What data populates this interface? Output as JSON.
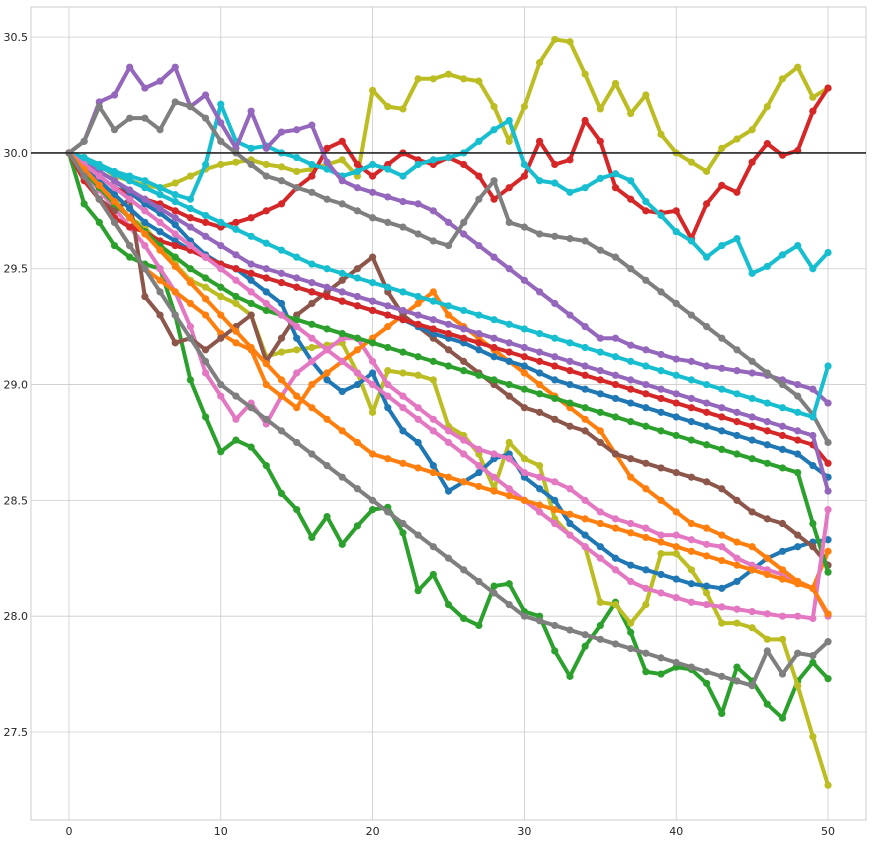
{
  "chart_data": {
    "type": "line",
    "title": "",
    "xlabel": "",
    "ylabel": "",
    "xlim": [
      -2.5,
      52.5
    ],
    "ylim": [
      27.12,
      30.63
    ],
    "x_ticks": [
      0,
      10,
      20,
      30,
      40,
      50
    ],
    "y_ticks": [
      27.5,
      28.0,
      28.5,
      29.0,
      29.5,
      30.0,
      30.5
    ],
    "x_tick_labels": [
      "0",
      "10",
      "20",
      "30",
      "40",
      "50"
    ],
    "y_tick_labels": [
      "27.5",
      "28.0",
      "28.5",
      "29.0",
      "29.5",
      "30.0",
      "30.5"
    ],
    "grid": true,
    "legend": "none",
    "reference_line": {
      "y": 30.0,
      "color": "#262626"
    },
    "marker": "circle",
    "series": [
      {
        "color": "#bcbd22",
        "values": [
          30.0,
          29.98,
          29.95,
          29.9,
          29.88,
          29.86,
          29.85,
          29.87,
          29.9,
          29.93,
          29.95,
          29.96,
          29.97,
          29.95,
          29.94,
          29.92,
          29.93,
          29.95,
          29.97,
          29.9,
          30.27,
          30.2,
          30.19,
          30.32,
          30.32,
          30.34,
          30.32,
          30.31,
          30.2,
          30.05,
          30.2,
          30.39,
          30.49,
          30.48,
          30.34,
          30.19,
          30.3,
          30.17,
          30.25,
          30.08,
          30.0,
          29.96,
          29.92,
          30.02,
          30.06,
          30.1,
          30.2,
          30.32,
          30.37,
          30.24,
          30.28
        ]
      },
      {
        "color": "#d62728",
        "values": [
          30.0,
          29.95,
          29.9,
          29.85,
          29.82,
          29.8,
          29.78,
          29.75,
          29.72,
          29.7,
          29.68,
          29.7,
          29.72,
          29.75,
          29.78,
          29.85,
          29.9,
          30.02,
          30.05,
          29.95,
          29.9,
          29.95,
          30.0,
          29.97,
          29.95,
          29.98,
          29.95,
          29.9,
          29.8,
          29.85,
          29.9,
          30.05,
          29.95,
          29.97,
          30.14,
          30.05,
          29.85,
          29.8,
          29.75,
          29.74,
          29.75,
          29.63,
          29.78,
          29.86,
          29.83,
          29.96,
          30.04,
          29.99,
          30.01,
          30.18,
          30.28
        ]
      },
      {
        "color": "#17becf",
        "values": [
          30.0,
          29.98,
          29.95,
          29.92,
          29.9,
          29.88,
          29.85,
          29.82,
          29.8,
          29.95,
          30.21,
          30.05,
          30.02,
          30.03,
          30.0,
          29.98,
          29.95,
          29.93,
          29.9,
          29.92,
          29.95,
          29.93,
          29.9,
          29.95,
          29.97,
          29.98,
          30.0,
          30.05,
          30.1,
          30.14,
          29.95,
          29.88,
          29.87,
          29.83,
          29.85,
          29.89,
          29.91,
          29.88,
          29.79,
          29.73,
          29.66,
          29.62,
          29.55,
          29.6,
          29.63,
          29.48,
          29.51,
          29.56,
          29.6,
          29.5,
          29.57
        ]
      },
      {
        "color": "#9467bd",
        "values": [
          30.0,
          30.05,
          30.22,
          30.25,
          30.37,
          30.28,
          30.31,
          30.37,
          30.2,
          30.25,
          30.13,
          30.02,
          30.18,
          30.02,
          30.09,
          30.1,
          30.12,
          29.96,
          29.88,
          29.85,
          29.83,
          29.81,
          29.79,
          29.78,
          29.75,
          29.7,
          29.65,
          29.6,
          29.55,
          29.5,
          29.45,
          29.4,
          29.35,
          29.3,
          29.25,
          29.2,
          29.2,
          29.17,
          29.15,
          29.13,
          29.11,
          29.1,
          29.08,
          29.07,
          29.06,
          29.05,
          29.04,
          29.02,
          29.0,
          28.98,
          28.92
        ]
      },
      {
        "color": "#7f7f7f",
        "values": [
          30.0,
          30.05,
          30.2,
          30.1,
          30.15,
          30.15,
          30.1,
          30.22,
          30.2,
          30.15,
          30.05,
          30.0,
          29.95,
          29.9,
          29.88,
          29.85,
          29.83,
          29.8,
          29.78,
          29.75,
          29.72,
          29.7,
          29.68,
          29.65,
          29.62,
          29.6,
          29.7,
          29.8,
          29.88,
          29.7,
          29.68,
          29.65,
          29.64,
          29.63,
          29.62,
          29.58,
          29.55,
          29.5,
          29.45,
          29.4,
          29.35,
          29.3,
          29.25,
          29.2,
          29.15,
          29.1,
          29.05,
          29.0,
          28.95,
          28.87,
          28.75
        ]
      },
      {
        "color": "#2ca02c",
        "values": [
          30.0,
          29.78,
          29.7,
          29.6,
          29.55,
          29.52,
          29.5,
          29.3,
          29.02,
          28.86,
          28.71,
          28.76,
          28.73,
          28.65,
          28.53,
          28.46,
          28.34,
          28.43,
          28.31,
          28.39,
          28.46,
          28.47,
          28.36,
          28.11,
          28.18,
          28.05,
          27.99,
          27.96,
          28.13,
          28.14,
          28.02,
          28.0,
          27.85,
          27.74,
          27.87,
          27.96,
          28.06,
          27.93,
          27.76,
          27.75,
          27.78,
          27.77,
          27.71,
          27.58,
          27.78,
          27.72,
          27.62,
          27.56,
          27.72,
          27.8,
          27.73
        ]
      },
      {
        "color": "#bcbd22",
        "values": [
          30.0,
          29.95,
          29.88,
          29.8,
          29.72,
          29.68,
          29.6,
          29.52,
          29.45,
          29.42,
          29.38,
          29.35,
          29.3,
          29.12,
          29.14,
          29.15,
          29.16,
          29.17,
          29.18,
          29.05,
          28.88,
          29.06,
          29.05,
          29.04,
          29.02,
          28.82,
          28.78,
          28.7,
          28.55,
          28.75,
          28.68,
          28.65,
          28.42,
          28.35,
          28.3,
          28.06,
          28.05,
          27.97,
          28.05,
          28.27,
          28.27,
          28.2,
          28.1,
          27.97,
          27.97,
          27.95,
          27.9,
          27.9,
          27.7,
          27.48,
          27.27
        ]
      },
      {
        "color": "#1f77b4",
        "values": [
          30.0,
          29.96,
          29.92,
          29.88,
          29.83,
          29.78,
          29.74,
          29.69,
          29.62,
          29.56,
          29.52,
          29.5,
          29.45,
          29.4,
          29.35,
          29.2,
          29.1,
          29.02,
          28.97,
          29.0,
          29.05,
          28.9,
          28.8,
          28.75,
          28.65,
          28.54,
          28.58,
          28.62,
          28.68,
          28.7,
          28.6,
          28.55,
          28.5,
          28.4,
          28.35,
          28.3,
          28.25,
          28.22,
          28.2,
          28.18,
          28.16,
          28.14,
          28.13,
          28.12,
          28.15,
          28.2,
          28.25,
          28.28,
          28.3,
          28.32,
          28.33
        ]
      },
      {
        "color": "#e377c2",
        "values": [
          30.0,
          29.92,
          29.84,
          29.76,
          29.68,
          29.6,
          29.5,
          29.4,
          29.25,
          29.05,
          28.95,
          28.85,
          28.92,
          28.83,
          28.95,
          29.05,
          29.1,
          29.15,
          29.2,
          29.2,
          29.1,
          29.0,
          28.95,
          28.9,
          28.85,
          28.8,
          28.76,
          28.72,
          28.7,
          28.68,
          28.62,
          28.6,
          28.58,
          28.55,
          28.5,
          28.45,
          28.42,
          28.4,
          28.38,
          28.35,
          28.35,
          28.33,
          28.31,
          28.3,
          28.25,
          28.22,
          28.2,
          28.18,
          28.15,
          28.12,
          28.0
        ]
      },
      {
        "color": "#ff7f0e",
        "values": [
          30.0,
          29.9,
          29.8,
          29.7,
          29.6,
          29.5,
          29.45,
          29.4,
          29.35,
          29.3,
          29.22,
          29.18,
          29.15,
          29.0,
          28.95,
          28.9,
          29.0,
          29.05,
          29.1,
          29.15,
          29.2,
          29.25,
          29.3,
          29.35,
          29.4,
          29.3,
          29.25,
          29.2,
          29.15,
          29.1,
          29.05,
          29.0,
          28.95,
          28.9,
          28.85,
          28.8,
          28.7,
          28.6,
          28.55,
          28.5,
          28.45,
          28.4,
          28.38,
          28.35,
          28.32,
          28.3,
          28.25,
          28.2,
          28.15,
          28.12,
          28.28
        ]
      },
      {
        "color": "#8c564b",
        "values": [
          30.0,
          29.9,
          29.8,
          29.75,
          29.8,
          29.38,
          29.3,
          29.18,
          29.2,
          29.15,
          29.2,
          29.25,
          29.3,
          29.1,
          29.2,
          29.3,
          29.35,
          29.4,
          29.45,
          29.5,
          29.55,
          29.4,
          29.3,
          29.25,
          29.2,
          29.15,
          29.1,
          29.05,
          29.0,
          28.95,
          28.9,
          28.88,
          28.85,
          28.82,
          28.8,
          28.75,
          28.7,
          28.68,
          28.66,
          28.64,
          28.62,
          28.6,
          28.58,
          28.55,
          28.5,
          28.45,
          28.42,
          28.4,
          28.35,
          28.3,
          28.22
        ]
      },
      {
        "color": "#1f77b4",
        "values": [
          30.0,
          29.94,
          29.88,
          29.82,
          29.76,
          29.7,
          29.66,
          29.62,
          29.58,
          29.55,
          29.52,
          29.5,
          29.48,
          29.46,
          29.44,
          29.42,
          29.4,
          29.38,
          29.36,
          29.34,
          29.32,
          29.3,
          29.28,
          29.25,
          29.22,
          29.2,
          29.18,
          29.15,
          29.12,
          29.1,
          29.08,
          29.05,
          29.02,
          29.0,
          28.98,
          28.96,
          28.94,
          28.92,
          28.9,
          28.88,
          28.86,
          28.84,
          28.82,
          28.8,
          28.78,
          28.76,
          28.74,
          28.72,
          28.7,
          28.65,
          28.6
        ]
      },
      {
        "color": "#d62728",
        "values": [
          30.0,
          29.88,
          29.8,
          29.72,
          29.68,
          29.66,
          29.62,
          29.6,
          29.58,
          29.55,
          29.52,
          29.5,
          29.48,
          29.46,
          29.44,
          29.42,
          29.4,
          29.38,
          29.36,
          29.34,
          29.32,
          29.3,
          29.28,
          29.26,
          29.24,
          29.22,
          29.2,
          29.18,
          29.16,
          29.14,
          29.12,
          29.1,
          29.08,
          29.06,
          29.04,
          29.02,
          29.0,
          28.98,
          28.96,
          28.94,
          28.92,
          28.9,
          28.88,
          28.86,
          28.84,
          28.82,
          28.8,
          28.78,
          28.76,
          28.74,
          28.66
        ]
      },
      {
        "color": "#9467bd",
        "values": [
          30.0,
          29.96,
          29.92,
          29.88,
          29.84,
          29.8,
          29.76,
          29.72,
          29.68,
          29.64,
          29.6,
          29.56,
          29.52,
          29.5,
          29.48,
          29.46,
          29.44,
          29.42,
          29.4,
          29.38,
          29.36,
          29.34,
          29.32,
          29.3,
          29.28,
          29.26,
          29.24,
          29.22,
          29.2,
          29.18,
          29.16,
          29.14,
          29.12,
          29.1,
          29.08,
          29.06,
          29.04,
          29.02,
          29.0,
          28.98,
          28.96,
          28.94,
          28.92,
          28.9,
          28.88,
          28.86,
          28.84,
          28.82,
          28.8,
          28.78,
          28.54
        ]
      },
      {
        "color": "#17becf",
        "values": [
          30.0,
          29.97,
          29.94,
          29.91,
          29.88,
          29.85,
          29.82,
          29.79,
          29.76,
          29.73,
          29.7,
          29.67,
          29.64,
          29.61,
          29.58,
          29.55,
          29.52,
          29.5,
          29.48,
          29.46,
          29.44,
          29.42,
          29.4,
          29.38,
          29.36,
          29.34,
          29.32,
          29.3,
          29.28,
          29.26,
          29.24,
          29.22,
          29.2,
          29.18,
          29.16,
          29.14,
          29.12,
          29.1,
          29.08,
          29.06,
          29.04,
          29.02,
          29.0,
          28.98,
          28.96,
          28.94,
          28.92,
          28.9,
          28.88,
          28.86,
          29.08
        ]
      },
      {
        "color": "#2ca02c",
        "values": [
          30.0,
          29.92,
          29.85,
          29.78,
          29.72,
          29.66,
          29.6,
          29.55,
          29.5,
          29.46,
          29.42,
          29.38,
          29.35,
          29.32,
          29.3,
          29.28,
          29.26,
          29.24,
          29.22,
          29.2,
          29.18,
          29.16,
          29.14,
          29.12,
          29.1,
          29.08,
          29.06,
          29.04,
          29.02,
          29.0,
          28.98,
          28.96,
          28.94,
          28.92,
          28.9,
          28.88,
          28.86,
          28.84,
          28.82,
          28.8,
          28.78,
          28.76,
          28.74,
          28.72,
          28.7,
          28.68,
          28.66,
          28.64,
          28.62,
          28.4,
          28.19
        ]
      },
      {
        "color": "#e377c2",
        "values": [
          30.0,
          29.95,
          29.9,
          29.85,
          29.8,
          29.75,
          29.7,
          29.65,
          29.6,
          29.55,
          29.5,
          29.45,
          29.4,
          29.35,
          29.3,
          29.25,
          29.2,
          29.15,
          29.1,
          29.05,
          29.0,
          28.95,
          28.9,
          28.85,
          28.8,
          28.75,
          28.7,
          28.65,
          28.6,
          28.55,
          28.5,
          28.45,
          28.4,
          28.35,
          28.3,
          28.25,
          28.2,
          28.15,
          28.12,
          28.1,
          28.08,
          28.06,
          28.05,
          28.04,
          28.03,
          28.02,
          28.01,
          28.0,
          28.0,
          27.99,
          28.46
        ]
      },
      {
        "color": "#ff7f0e",
        "values": [
          30.0,
          29.93,
          29.86,
          29.79,
          29.72,
          29.65,
          29.58,
          29.51,
          29.44,
          29.37,
          29.3,
          29.23,
          29.16,
          29.09,
          29.02,
          28.95,
          28.9,
          28.85,
          28.8,
          28.75,
          28.7,
          28.68,
          28.66,
          28.64,
          28.62,
          28.6,
          28.58,
          28.56,
          28.54,
          28.52,
          28.5,
          28.48,
          28.46,
          28.44,
          28.42,
          28.4,
          28.38,
          28.36,
          28.34,
          28.32,
          28.3,
          28.28,
          28.26,
          28.24,
          28.22,
          28.2,
          28.18,
          28.16,
          28.14,
          28.12,
          28.01
        ]
      },
      {
        "color": "#7f7f7f",
        "values": [
          30.0,
          29.9,
          29.8,
          29.7,
          29.6,
          29.5,
          29.4,
          29.3,
          29.2,
          29.1,
          29.0,
          28.95,
          28.9,
          28.85,
          28.8,
          28.75,
          28.7,
          28.65,
          28.6,
          28.55,
          28.5,
          28.45,
          28.4,
          28.35,
          28.3,
          28.25,
          28.2,
          28.15,
          28.1,
          28.05,
          28.0,
          27.98,
          27.96,
          27.94,
          27.92,
          27.9,
          27.88,
          27.86,
          27.84,
          27.82,
          27.8,
          27.78,
          27.76,
          27.74,
          27.72,
          27.7,
          27.85,
          27.75,
          27.84,
          27.83,
          27.89
        ]
      }
    ]
  }
}
